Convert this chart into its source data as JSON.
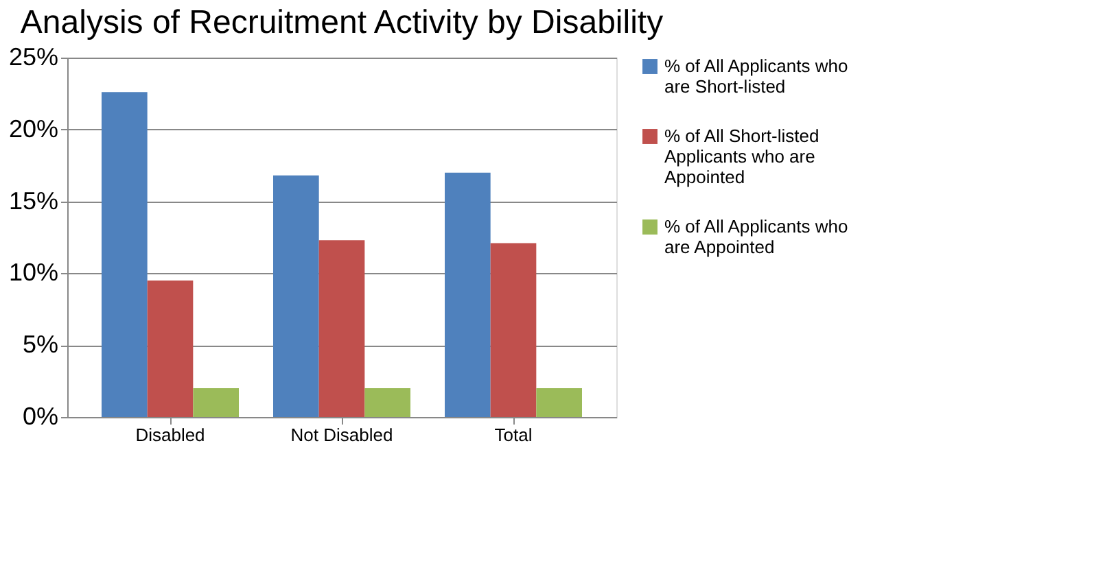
{
  "chart_data": {
    "type": "bar",
    "title": "Analysis of Recruitment Activity by Disability",
    "categories": [
      "Disabled",
      "Not Disabled",
      "Total"
    ],
    "series": [
      {
        "name": "% of All Applicants who are Short-listed",
        "color": "#4f81bd",
        "values": [
          22.6,
          16.8,
          17.0
        ]
      },
      {
        "name": "% of All Short-listed Applicants who are Appointed",
        "color": "#c0504d",
        "values": [
          9.5,
          12.3,
          12.1
        ]
      },
      {
        "name": "% of All Applicants who are Appointed",
        "color": "#9bbb59",
        "values": [
          2.0,
          2.0,
          2.0
        ]
      }
    ],
    "ylim": [
      0,
      25
    ],
    "yticks": [
      {
        "value": 0,
        "label": "0%"
      },
      {
        "value": 5,
        "label": "5%"
      },
      {
        "value": 10,
        "label": "10%"
      },
      {
        "value": 15,
        "label": "15%"
      },
      {
        "value": 20,
        "label": "20%"
      },
      {
        "value": 25,
        "label": "25%"
      }
    ],
    "grid": "y",
    "legend": "right"
  }
}
